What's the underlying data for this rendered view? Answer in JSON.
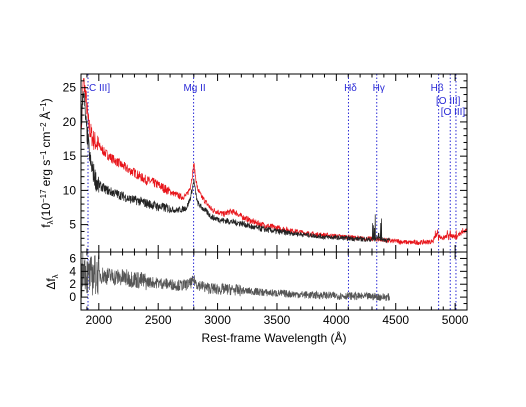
{
  "chart_data": [
    {
      "type": "line",
      "panel": "spectrum",
      "ylabel_main": "f",
      "ylabel_sub": "λ",
      "ylabel_units": "(10",
      "ylabel_exp1": "−17",
      "ylabel_units2": "erg s",
      "ylabel_exp2": "−1",
      "ylabel_units3": "cm",
      "ylabel_exp3": "−2",
      "ylabel_units4": "Å",
      "ylabel_exp4": "−1",
      "ylabel_close": ")",
      "xlim": [
        1850,
        5100
      ],
      "ylim": [
        1,
        27
      ],
      "yticks": [
        5,
        10,
        15,
        20,
        25
      ],
      "series": [
        {
          "color": "#e8141a",
          "x": [
            1850,
            1870,
            1890,
            1910,
            1930,
            1950,
            1975,
            2000,
            2050,
            2100,
            2150,
            2200,
            2250,
            2300,
            2350,
            2400,
            2450,
            2500,
            2550,
            2600,
            2650,
            2700,
            2740,
            2770,
            2790,
            2800,
            2810,
            2830,
            2860,
            2900,
            2950,
            3000,
            3050,
            3100,
            3150,
            3200,
            3300,
            3400,
            3500,
            3600,
            3700,
            3800,
            3900,
            4000,
            4100,
            4200,
            4300,
            4400,
            4450,
            4500,
            4600,
            4700,
            4800,
            4850,
            4900,
            4950,
            5000,
            5050,
            5100
          ],
          "y": [
            18,
            26,
            24,
            20,
            18.5,
            17.5,
            17,
            16.5,
            15.5,
            14.8,
            14.2,
            13.6,
            13,
            12.6,
            12,
            11.5,
            11.2,
            10.8,
            10.3,
            9.8,
            9.4,
            9,
            9.3,
            10.5,
            12.5,
            14,
            12.5,
            10.3,
            9.2,
            8.3,
            7.2,
            6.9,
            6.5,
            6.9,
            6.8,
            6.2,
            5.4,
            4.9,
            4.5,
            4.2,
            3.9,
            3.6,
            3.5,
            3.3,
            3.2,
            3.0,
            2.9,
            2.8,
            2.6,
            2.6,
            2.4,
            2.4,
            2.5,
            3.5,
            3.0,
            3.6,
            3.2,
            3.8,
            4.2
          ]
        },
        {
          "color": "#222222",
          "x": [
            1850,
            1870,
            1890,
            1910,
            1930,
            1950,
            1975,
            2000,
            2050,
            2100,
            2150,
            2200,
            2250,
            2300,
            2350,
            2400,
            2450,
            2500,
            2550,
            2600,
            2650,
            2700,
            2740,
            2770,
            2790,
            2800,
            2810,
            2830,
            2860,
            2900,
            2950,
            3000,
            3050,
            3100,
            3150,
            3200,
            3300,
            3400,
            3500,
            3600,
            3700,
            3800,
            3900,
            4000,
            4100,
            4200,
            4300,
            4350,
            4400,
            4450
          ],
          "y": [
            19,
            25,
            20,
            17,
            14,
            12.8,
            11.5,
            10.8,
            10.2,
            9.8,
            9.5,
            9.2,
            8.8,
            8.6,
            8.4,
            8.1,
            7.9,
            7.6,
            7.5,
            7.3,
            7.1,
            7.2,
            7.5,
            8.8,
            10.5,
            11.5,
            10.2,
            8.2,
            7.6,
            7.0,
            6.1,
            5.8,
            5.6,
            5.5,
            5.3,
            5.2,
            4.6,
            4.3,
            4.0,
            3.8,
            3.6,
            3.4,
            3.2,
            3.1,
            3.0,
            2.9,
            2.8,
            2.9,
            2.8,
            2.7
          ]
        }
      ],
      "lines": [
        {
          "label": "C III]",
          "x": 1909
        },
        {
          "label": "Mg II",
          "x": 2798
        },
        {
          "label": "Hδ",
          "x": 4102
        },
        {
          "label": "Hγ",
          "x": 4340
        },
        {
          "label": "Hβ",
          "x": 4861
        },
        {
          "label": "[O III]",
          "x": 4959
        },
        {
          "label": "[O III]",
          "x": 5007
        }
      ],
      "line_color": "#2a2ad6"
    },
    {
      "type": "line",
      "panel": "residual",
      "ylabel_main": "Δf",
      "ylabel_sub": "λ",
      "xlabel": "Rest-frame Wavelength  (Å)",
      "xlim": [
        1850,
        5100
      ],
      "ylim": [
        -2,
        7
      ],
      "yticks": [
        0,
        2,
        4,
        6
      ],
      "xticks": [
        2000,
        2500,
        3000,
        3500,
        4000,
        4500,
        5000
      ],
      "series": [
        {
          "color": "#555555",
          "x": [
            1850,
            1870,
            1890,
            1910,
            1930,
            1960,
            2000,
            2100,
            2200,
            2300,
            2400,
            2500,
            2600,
            2700,
            2760,
            2790,
            2800,
            2830,
            2900,
            3000,
            3100,
            3200,
            3300,
            3400,
            3500,
            3600,
            3700,
            3800,
            3900,
            4000,
            4100,
            4200,
            4300,
            4400,
            4450
          ],
          "y": [
            2,
            5,
            4,
            3,
            3.2,
            3.5,
            3.5,
            3.2,
            3.0,
            2.8,
            2.4,
            2.2,
            2.0,
            1.8,
            2.0,
            2.4,
            2.6,
            2.0,
            1.5,
            1.2,
            1.2,
            1.0,
            0.9,
            0.7,
            0.6,
            0.5,
            0.4,
            0.3,
            0.3,
            0.2,
            0.2,
            0.1,
            0.1,
            0.0,
            0.0
          ]
        }
      ]
    }
  ]
}
